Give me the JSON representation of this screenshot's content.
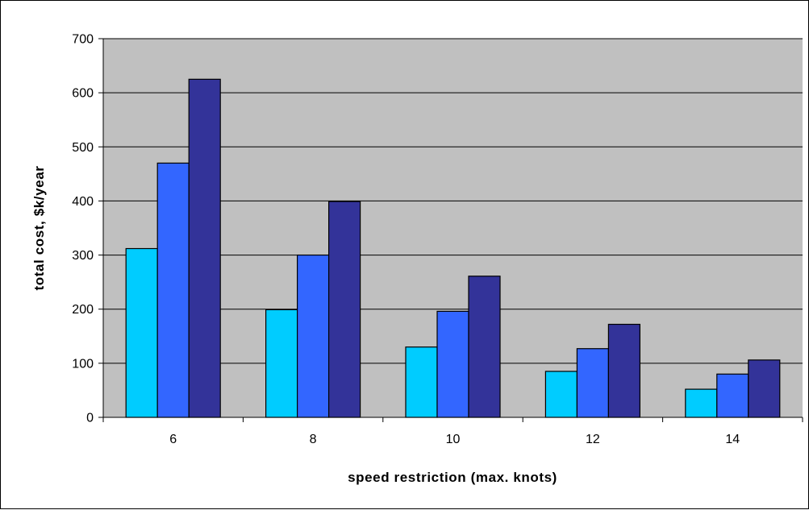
{
  "chart_data": {
    "type": "bar",
    "title": "",
    "xlabel": "speed restriction (max. knots)",
    "ylabel": "total cost, $k/year",
    "categories": [
      "6",
      "8",
      "10",
      "12",
      "14"
    ],
    "series": [
      {
        "values": [
          312,
          199,
          130,
          85,
          52
        ]
      },
      {
        "values": [
          470,
          300,
          196,
          127,
          80
        ]
      },
      {
        "values": [
          625,
          399,
          261,
          172,
          106
        ]
      }
    ],
    "ylim": [
      0,
      700
    ],
    "yticks": [
      "0",
      "100",
      "200",
      "300",
      "400",
      "500",
      "600",
      "700"
    ],
    "grid": true,
    "legend": "none",
    "colors": {
      "plot_background": "#c0c0c0",
      "gridline": "#000000",
      "bar_outline": "#000000",
      "series": [
        "#00ccff",
        "#3366ff",
        "#333399"
      ]
    }
  }
}
